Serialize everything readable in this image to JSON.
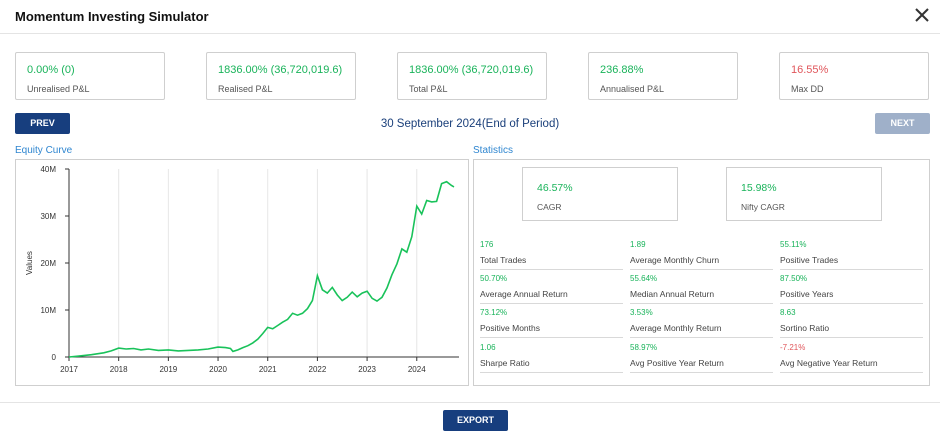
{
  "header": {
    "title": "Momentum Investing Simulator"
  },
  "summary_cards": [
    {
      "value": "0.00% (0)",
      "label": "Unrealised P&L",
      "color": "#19b35a"
    },
    {
      "value": "1836.00% (36,720,019.6)",
      "label": "Realised P&L",
      "color": "#19b35a"
    },
    {
      "value": "1836.00% (36,720,019.6)",
      "label": "Total P&L",
      "color": "#19b35a"
    },
    {
      "value": "236.88%",
      "label": "Annualised P&L",
      "color": "#19b35a"
    },
    {
      "value": "16.55%",
      "label": "Max DD",
      "color": "#e0565b"
    }
  ],
  "nav": {
    "prev_label": "PREV",
    "next_label": "NEXT",
    "period": "30 September 2024(End of Period)"
  },
  "equity": {
    "title": "Equity Curve"
  },
  "statistics": {
    "title": "Statistics",
    "cagr": {
      "value": "46.57%",
      "label": "CAGR"
    },
    "nifty_cagr": {
      "value": "15.98%",
      "label": "Nifty CAGR"
    },
    "grid": [
      {
        "value": "176",
        "label": "Total Trades",
        "color": "#19b35a"
      },
      {
        "value": "1.89",
        "label": "Average Monthly Churn",
        "color": "#19b35a"
      },
      {
        "value": "55.11%",
        "label": "Positive Trades",
        "color": "#19b35a"
      },
      {
        "value": "50.70%",
        "label": "Average Annual Return",
        "color": "#19b35a"
      },
      {
        "value": "55.64%",
        "label": "Median Annual Return",
        "color": "#19b35a"
      },
      {
        "value": "87.50%",
        "label": "Positive Years",
        "color": "#19b35a"
      },
      {
        "value": "73.12%",
        "label": "Positive Months",
        "color": "#19b35a"
      },
      {
        "value": "3.53%",
        "label": "Average Monthly Return",
        "color": "#19b35a"
      },
      {
        "value": "8.63",
        "label": "Sortino Ratio",
        "color": "#19b35a"
      },
      {
        "value": "1.06",
        "label": "Sharpe Ratio",
        "color": "#19b35a"
      },
      {
        "value": "58.97%",
        "label": "Avg Positive Year Return",
        "color": "#19b35a"
      },
      {
        "value": "-7.21%",
        "label": "Avg Negative Year Return",
        "color": "#e0565b"
      }
    ]
  },
  "footer": {
    "export_label": "EXPORT"
  },
  "colors": {
    "accent": "#173e7e",
    "positive": "#19b35a",
    "negative": "#e0565b",
    "link": "#2f86d0",
    "disabled": "#9fb0c9"
  },
  "chart_data": {
    "type": "line",
    "title": "",
    "xlabel": "",
    "ylabel": "Values",
    "xlim": [
      2017.0,
      2024.85
    ],
    "ylim": [
      0,
      40000000
    ],
    "x_ticks": [
      2017,
      2018,
      2019,
      2020,
      2021,
      2022,
      2023,
      2024
    ],
    "x_tick_labels": [
      "2017",
      "2018",
      "2019",
      "2020",
      "2021",
      "2022",
      "2023",
      "2024"
    ],
    "y_ticks": [
      0,
      10000000,
      20000000,
      30000000,
      40000000
    ],
    "y_tick_labels": [
      "0",
      "10M",
      "20M",
      "30M",
      "40M"
    ],
    "grid": true,
    "line_color": "#19c25a",
    "series": [
      {
        "x": [
          2017.0,
          2017.2,
          2017.45,
          2017.7,
          2017.85,
          2018.0,
          2018.15,
          2018.3,
          2018.45,
          2018.6,
          2018.8,
          2019.0,
          2019.2,
          2019.4,
          2019.6,
          2019.8,
          2020.0,
          2020.15,
          2020.25,
          2020.3,
          2020.4,
          2020.5,
          2020.6,
          2020.7,
          2020.8,
          2020.9,
          2021.0,
          2021.1,
          2021.2,
          2021.3,
          2021.4,
          2021.5,
          2021.6,
          2021.7,
          2021.8,
          2021.9,
          2022.0,
          2022.1,
          2022.2,
          2022.3,
          2022.4,
          2022.5,
          2022.6,
          2022.7,
          2022.8,
          2022.9,
          2023.0,
          2023.1,
          2023.2,
          2023.3,
          2023.4,
          2023.5,
          2023.6,
          2023.7,
          2023.8,
          2023.9,
          2024.0,
          2024.1,
          2024.2,
          2024.3,
          2024.4,
          2024.5,
          2024.6,
          2024.7,
          2024.75
        ],
        "y": [
          0,
          200000,
          500000,
          900000,
          1300000,
          1900000,
          1700000,
          1800000,
          1500000,
          1700000,
          1400000,
          1500000,
          1300000,
          1400000,
          1500000,
          1700000,
          2100000,
          2000000,
          1800000,
          1200000,
          1500000,
          2000000,
          2400000,
          3000000,
          3800000,
          5000000,
          6300000,
          6000000,
          6700000,
          7400000,
          8000000,
          9300000,
          8900000,
          9300000,
          10300000,
          12000000,
          17300000,
          14300000,
          13600000,
          14800000,
          13200000,
          12000000,
          12700000,
          13800000,
          12800000,
          13600000,
          14000000,
          12500000,
          11900000,
          12700000,
          14700000,
          17500000,
          19800000,
          23000000,
          22300000,
          25600000,
          32100000,
          30400000,
          33300000,
          33000000,
          33100000,
          36900000,
          37300000,
          36500000,
          36200000
        ]
      }
    ]
  }
}
